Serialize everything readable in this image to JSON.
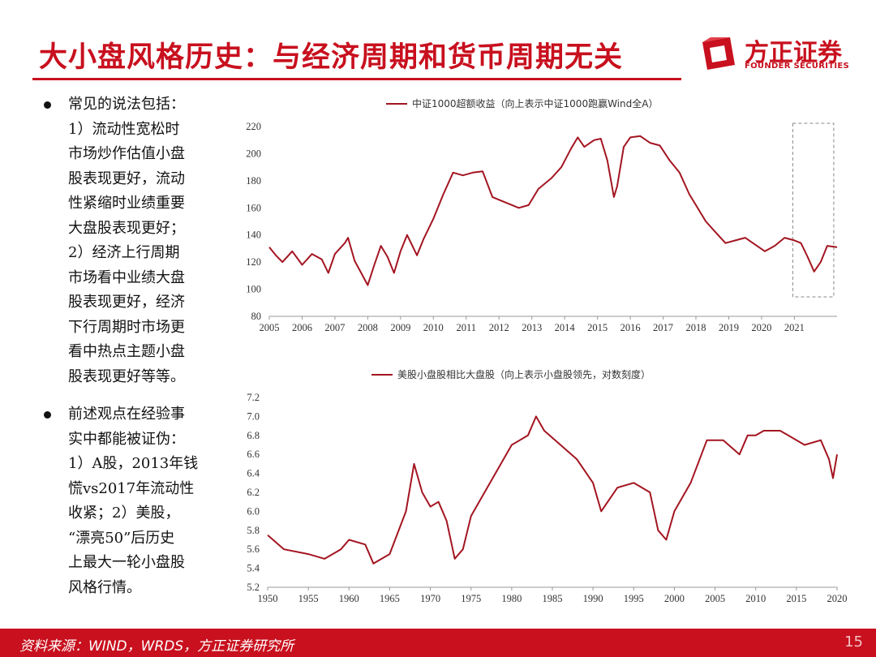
{
  "header": {
    "title": "大小盘风格历史：与经济周期和货币周期无关",
    "logo_cn": "方正证券",
    "logo_en": "FOUNDER SECURITIES",
    "logo_icon": "founder-logo-icon",
    "accent_color": "#c8101e"
  },
  "bullets": [
    {
      "lines": [
        "常见的说法包括：",
        "1）流动性宽松时",
        "市场炒作估值小盘",
        "股表现更好，流动",
        "性紧缩时业绩重要",
        "大盘股表现更好；",
        "2）经济上行周期",
        "市场看中业绩大盘",
        "股表现更好，经济",
        "下行周期时市场更",
        "看中热点主题小盘",
        "股表现更好等等。"
      ]
    },
    {
      "lines": [
        "前述观点在经验事",
        "实中都能被证伪：",
        "1）A股，2013年钱",
        "慌vs2017年流动性",
        "收紧；2）美股，",
        "“漂亮50”后历史",
        "上最大一轮小盘股",
        "风格行情。"
      ]
    }
  ],
  "chart_data": [
    {
      "type": "line",
      "legend": "中证1000超额收益（向上表示中证1000跑赢Wind全A）",
      "series": [
        {
          "name": "中证1000超额收益（向上表示中证1000跑赢Wind全A）",
          "color": "#a31521",
          "x": [
            2005.0,
            2005.2,
            2005.4,
            2005.7,
            2006.0,
            2006.3,
            2006.6,
            2006.8,
            2007.0,
            2007.3,
            2007.4,
            2007.6,
            2007.8,
            2008.0,
            2008.2,
            2008.4,
            2008.6,
            2008.8,
            2009.0,
            2009.2,
            2009.5,
            2009.7,
            2010.0,
            2010.3,
            2010.6,
            2010.9,
            2011.2,
            2011.5,
            2011.8,
            2012.0,
            2012.3,
            2012.6,
            2012.9,
            2013.2,
            2013.6,
            2013.9,
            2014.2,
            2014.4,
            2014.6,
            2014.9,
            2015.1,
            2015.3,
            2015.5,
            2015.6,
            2015.8,
            2016.0,
            2016.3,
            2016.6,
            2016.9,
            2017.2,
            2017.5,
            2017.8,
            2018.0,
            2018.3,
            2018.6,
            2018.9,
            2019.2,
            2019.5,
            2019.8,
            2020.1,
            2020.4,
            2020.7,
            2021.0,
            2021.2,
            2021.4,
            2021.6,
            2021.8,
            2022.0,
            2022.3
          ],
          "values": [
            131,
            125,
            120,
            128,
            118,
            126,
            122,
            112,
            126,
            134,
            138,
            121,
            112,
            103,
            118,
            132,
            124,
            112,
            128,
            140,
            125,
            137,
            152,
            170,
            186,
            184,
            186,
            187,
            168,
            166,
            163,
            160,
            162,
            174,
            182,
            190,
            204,
            212,
            205,
            210,
            211,
            195,
            168,
            176,
            205,
            212,
            213,
            208,
            206,
            195,
            186,
            170,
            162,
            150,
            142,
            134,
            136,
            138,
            133,
            128,
            132,
            138,
            136,
            134,
            124,
            113,
            120,
            132,
            131
          ]
        }
      ],
      "ylim": [
        80,
        220
      ],
      "yticks": [
        80,
        100,
        120,
        140,
        160,
        180,
        200,
        220
      ],
      "xticks": [
        "2005",
        "2006",
        "2007",
        "2008",
        "2009",
        "2010",
        "2011",
        "2012",
        "2013",
        "2014",
        "2015",
        "2016",
        "2017",
        "2018",
        "2019",
        "2020",
        "2021"
      ],
      "xrange": [
        2005,
        2022.3
      ],
      "highlight_box": {
        "x_from": 2021.0,
        "x_to": 2022.1,
        "style": "dashed"
      }
    },
    {
      "type": "line",
      "legend": "美股小盘股相比大盘股（向上表示小盘股领先，对数刻度）",
      "series": [
        {
          "name": "美股小盘股相比大盘股（向上表示小盘股领先，对数刻度）",
          "color": "#a31521",
          "x": [
            1950,
            1952,
            1955,
            1957,
            1959,
            1960,
            1962,
            1963,
            1965,
            1967,
            1968,
            1969,
            1970,
            1971,
            1972,
            1973,
            1974,
            1975,
            1976,
            1978,
            1980,
            1982,
            1983,
            1984,
            1986,
            1988,
            1990,
            1991,
            1993,
            1995,
            1997,
            1998,
            1999,
            2000,
            2002,
            2004,
            2006,
            2008,
            2009,
            2010,
            2011,
            2013,
            2014,
            2016,
            2018,
            2019,
            2019.5,
            2020
          ],
          "values": [
            5.75,
            5.6,
            5.55,
            5.5,
            5.6,
            5.7,
            5.65,
            5.45,
            5.55,
            6.0,
            6.5,
            6.2,
            6.05,
            6.1,
            5.9,
            5.5,
            5.6,
            5.95,
            6.1,
            6.4,
            6.7,
            6.8,
            7.0,
            6.85,
            6.7,
            6.55,
            6.3,
            6.0,
            6.25,
            6.3,
            6.2,
            5.8,
            5.7,
            6.0,
            6.3,
            6.75,
            6.75,
            6.6,
            6.8,
            6.8,
            6.85,
            6.85,
            6.8,
            6.7,
            6.75,
            6.55,
            6.35,
            6.6
          ]
        }
      ],
      "ylim": [
        5.2,
        7.2
      ],
      "yticks": [
        5.2,
        5.4,
        5.6,
        5.8,
        6.0,
        6.2,
        6.4,
        6.6,
        6.8,
        7.0,
        7.2
      ],
      "xticks": [
        "1950",
        "1955",
        "1960",
        "1965",
        "1970",
        "1975",
        "1980",
        "1985",
        "1990",
        "1995",
        "2000",
        "2005",
        "2010",
        "2015",
        "2020"
      ],
      "xrange": [
        1950,
        2020
      ]
    }
  ],
  "footer": {
    "source": "资料来源：WIND，WRDS，方正证券研究所",
    "page": "15"
  }
}
